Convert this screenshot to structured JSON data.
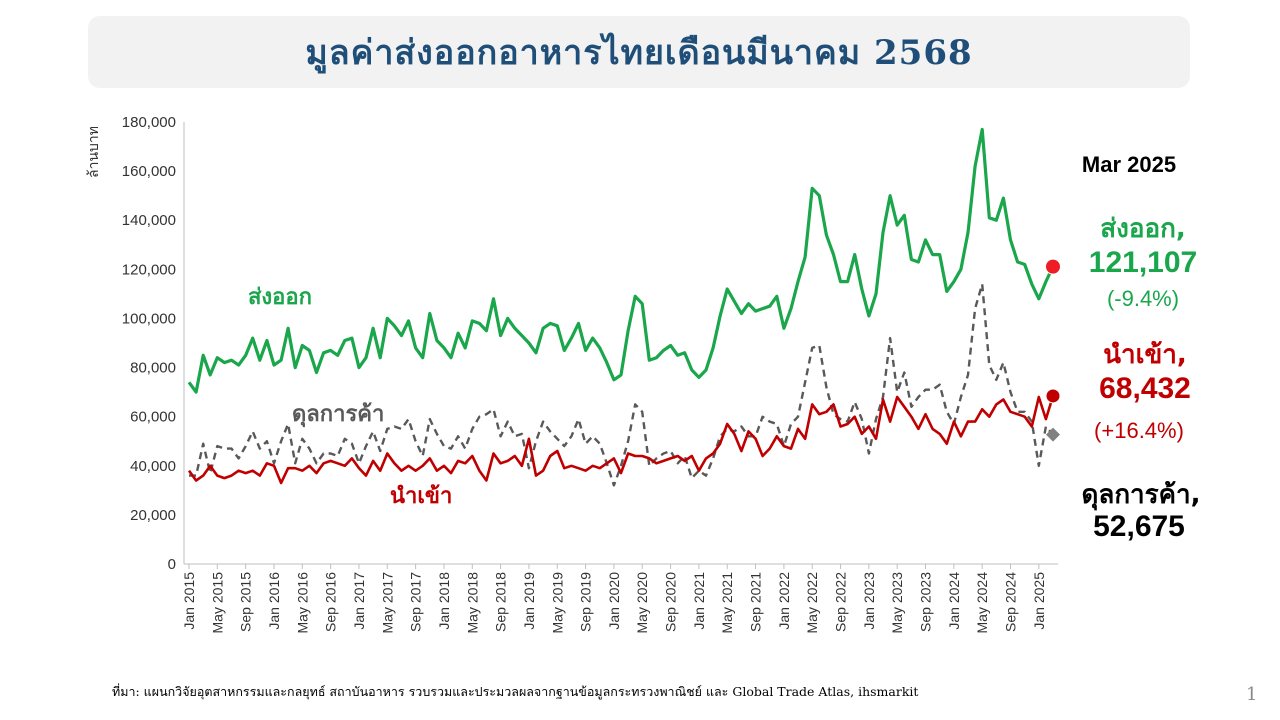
{
  "title": "มูลค่าส่งออกอาหารไทยเดือนมีนาคม 2568",
  "source": "ที่มา: แผนกวิจัยอุตสาหกรรมและกลยุทธ์   สถาบันอาหาร รวบรวมและประมวลผลจากฐานข้อมูลกระทรวงพาณิชย์  และ Global Trade Atlas, ihsmarkit",
  "page_number": "1",
  "annotations": {
    "period": "Mar 2025",
    "export_label": "ส่งออก,",
    "export_value": "121,107",
    "export_change": "(-9.4%)",
    "import_label": "นำเข้า,",
    "import_value": "68,432",
    "import_change": "(+16.4%)",
    "balance_label": "ดุลการค้า,",
    "balance_value": "52,675"
  },
  "colors": {
    "export": "#1aa64b",
    "import": "#c00000",
    "balance": "#595959",
    "export_marker": "#ee1c25",
    "balance_marker": "#808080"
  },
  "chart_data": {
    "type": "line",
    "ylabel": "ล้านบาท",
    "ylim": [
      0,
      180000
    ],
    "yticks": [
      0,
      20000,
      40000,
      60000,
      80000,
      100000,
      120000,
      140000,
      160000,
      180000
    ],
    "ytick_labels": [
      "0",
      "20,000",
      "40,000",
      "60,000",
      "80,000",
      "100,000",
      "120,000",
      "140,000",
      "160,000",
      "180,000"
    ],
    "x_start": "Jan 2015",
    "x_end": "Mar 2025",
    "xtick_labels": [
      "Jan 2015",
      "May 2015",
      "Sep 2015",
      "Jan 2016",
      "May 2016",
      "Sep 2016",
      "Jan 2017",
      "May 2017",
      "Sep 2017",
      "Jan 2018",
      "May 2018",
      "Sep 2018",
      "Jan 2019",
      "May 2019",
      "Sep 2019",
      "Jan 2020",
      "May 2020",
      "Sep 2020",
      "Jan 2021",
      "May 2021",
      "Sep 2021",
      "Jan 2022",
      "May 2022",
      "Sep 2022",
      "Jan 2023",
      "May 2023",
      "Sep 2023",
      "Jan 2024",
      "May 2024",
      "Sep 2024",
      "Jan 2025"
    ],
    "grid": false,
    "series": [
      {
        "name": "ส่งออก",
        "style": "solid",
        "values": [
          74000,
          70000,
          85000,
          77000,
          84000,
          82000,
          83000,
          81000,
          85000,
          92000,
          83000,
          91000,
          81000,
          83000,
          96000,
          80000,
          89000,
          87000,
          78000,
          86000,
          87000,
          85000,
          91000,
          92000,
          80000,
          84000,
          96000,
          84000,
          100000,
          97000,
          93000,
          99000,
          88000,
          84000,
          102000,
          91000,
          88000,
          84000,
          94000,
          88000,
          99000,
          98000,
          95000,
          108000,
          93000,
          100000,
          96000,
          93000,
          90000,
          86000,
          96000,
          98000,
          97000,
          87000,
          92000,
          98000,
          87000,
          92000,
          88000,
          82000,
          75000,
          77000,
          95000,
          109000,
          106000,
          83000,
          84000,
          87000,
          89000,
          85000,
          86000,
          79000,
          76000,
          79000,
          88000,
          101000,
          112000,
          107000,
          102000,
          106000,
          103000,
          104000,
          105000,
          109000,
          96000,
          104000,
          115000,
          125000,
          153000,
          150000,
          134000,
          126000,
          115000,
          115000,
          126000,
          112000,
          101000,
          110000,
          135000,
          150000,
          138000,
          142000,
          124000,
          123000,
          132000,
          126000,
          126000,
          111000,
          115000,
          120000,
          135000,
          162000,
          177000,
          141000,
          140000,
          149000,
          132000,
          123000,
          122000,
          114000,
          108000,
          115000,
          121107
        ]
      },
      {
        "name": "นำเข้า",
        "style": "solid",
        "values": [
          38000,
          34000,
          36000,
          40000,
          36000,
          35000,
          36000,
          38000,
          37000,
          38000,
          36000,
          41000,
          40000,
          33000,
          39000,
          39000,
          38000,
          40000,
          37000,
          41000,
          42000,
          41000,
          40000,
          43000,
          39000,
          36000,
          42000,
          38000,
          45000,
          41000,
          38000,
          40000,
          38000,
          40000,
          43000,
          38000,
          40000,
          37000,
          42000,
          41000,
          44000,
          38000,
          34000,
          45000,
          41000,
          42000,
          44000,
          40000,
          51000,
          36000,
          38000,
          44000,
          46000,
          39000,
          40000,
          39000,
          38000,
          40000,
          39000,
          41000,
          43000,
          37000,
          45000,
          44000,
          44000,
          43000,
          41000,
          42000,
          43000,
          44000,
          42000,
          44000,
          38000,
          43000,
          45000,
          49000,
          57000,
          53000,
          46000,
          54000,
          51000,
          44000,
          47000,
          52000,
          48000,
          47000,
          55000,
          51000,
          65000,
          61000,
          62000,
          65000,
          56000,
          57000,
          60000,
          53000,
          56000,
          51000,
          67000,
          58000,
          68000,
          64000,
          60000,
          55000,
          61000,
          55000,
          53000,
          49000,
          58000,
          52000,
          58000,
          58000,
          63000,
          60000,
          65000,
          67000,
          62000,
          61000,
          60000,
          56000,
          68000,
          59000,
          68432
        ]
      },
      {
        "name": "ดุลการค้า",
        "style": "dashed",
        "values": [
          36000,
          36000,
          49000,
          37000,
          48000,
          47000,
          47000,
          43000,
          48000,
          54000,
          47000,
          50000,
          41000,
          50000,
          57000,
          41000,
          51000,
          47000,
          41000,
          45000,
          45000,
          44000,
          51000,
          49000,
          41000,
          48000,
          54000,
          46000,
          55000,
          56000,
          55000,
          59000,
          50000,
          44000,
          59000,
          53000,
          48000,
          47000,
          52000,
          47000,
          55000,
          60000,
          61000,
          63000,
          52000,
          58000,
          52000,
          53000,
          39000,
          50000,
          58000,
          54000,
          51000,
          48000,
          52000,
          59000,
          49000,
          52000,
          49000,
          41000,
          32000,
          40000,
          50000,
          65000,
          62000,
          40000,
          43000,
          45000,
          46000,
          41000,
          44000,
          35000,
          38000,
          36000,
          43000,
          52000,
          55000,
          54000,
          56000,
          52000,
          52000,
          60000,
          58000,
          57000,
          48000,
          57000,
          60000,
          74000,
          88000,
          89000,
          72000,
          61000,
          59000,
          58000,
          66000,
          59000,
          45000,
          59000,
          68000,
          92000,
          70000,
          78000,
          64000,
          68000,
          71000,
          71000,
          73000,
          62000,
          57000,
          68000,
          77000,
          104000,
          114000,
          81000,
          75000,
          82000,
          70000,
          62000,
          62000,
          58000,
          40000,
          56000,
          52675
        ]
      }
    ]
  }
}
